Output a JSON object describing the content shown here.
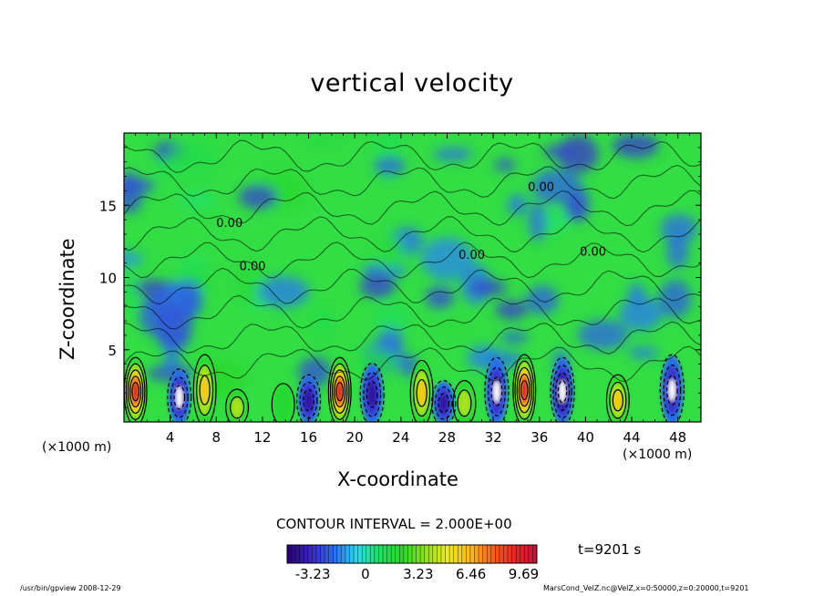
{
  "chart_data": {
    "type": "heatmap",
    "title": "vertical velocity",
    "xlabel": "X-coordinate",
    "ylabel": "Z-coordinate",
    "x_unit": "(×1000 m)",
    "xlim": [
      0,
      50
    ],
    "ylim": [
      0,
      20
    ],
    "x_ticks": [
      4,
      8,
      12,
      16,
      20,
      24,
      28,
      32,
      36,
      40,
      44,
      48
    ],
    "y_ticks": [
      5,
      10,
      15
    ],
    "contour_label": "0.00",
    "contour_interval": "CONTOUR INTERVAL = 2.000E+00",
    "colorbar": {
      "min": -4.8,
      "max": 10.5,
      "ticks": [
        "-3.23",
        "0",
        "3.23",
        "6.46",
        "9.69"
      ],
      "tick_values": [
        -3.23,
        0,
        3.23,
        6.46,
        9.69
      ]
    },
    "time": "t=9201 s",
    "updrafts": [
      {
        "x": 1.0,
        "z": 2.1,
        "w": 10.0
      },
      {
        "x": 7.0,
        "z": 2.2,
        "w": 7.0
      },
      {
        "x": 9.8,
        "z": 1.0,
        "w": 4.0
      },
      {
        "x": 13.8,
        "z": 1.2,
        "w": 3.5
      },
      {
        "x": 18.7,
        "z": 2.1,
        "w": 10.0
      },
      {
        "x": 25.8,
        "z": 2.0,
        "w": 6.5
      },
      {
        "x": 29.5,
        "z": 1.3,
        "w": 4.0
      },
      {
        "x": 34.7,
        "z": 2.2,
        "w": 10.0
      },
      {
        "x": 42.8,
        "z": 1.5,
        "w": 7.0
      }
    ],
    "downdrafts": [
      {
        "x": 4.8,
        "z": 1.7,
        "w": -4.5
      },
      {
        "x": 16.0,
        "z": 1.5,
        "w": -4.0
      },
      {
        "x": 21.5,
        "z": 1.9,
        "w": -4.0
      },
      {
        "x": 27.7,
        "z": 1.3,
        "w": -4.0
      },
      {
        "x": 32.3,
        "z": 2.1,
        "w": -4.5
      },
      {
        "x": 38.0,
        "z": 2.1,
        "w": -5.0
      },
      {
        "x": 47.5,
        "z": 2.2,
        "w": -4.5
      }
    ]
  },
  "footer": {
    "left": "/usr/bin/gpview   2008-12-29",
    "right": "MarsCond_VelZ.nc@VelZ,x=0:50000,z=0:20000,t=9201"
  }
}
